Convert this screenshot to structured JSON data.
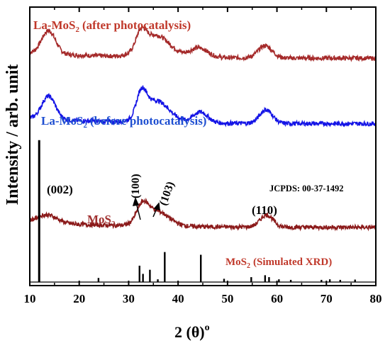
{
  "chart_data": {
    "type": "line",
    "xlabel": "2 (θ)",
    "xlabel_sup": "o",
    "ylabel": "Intensity / arb. unit",
    "xlim": [
      10,
      80
    ],
    "xticks": [
      10,
      20,
      30,
      40,
      50,
      60,
      70,
      80
    ],
    "y_ticks_shown": false,
    "grid": false,
    "series": [
      {
        "name": "La-MoS",
        "name_sub": "2",
        "name_suffix": "(after photocatalysis)",
        "color": "#a52a2a",
        "label_color": "#c0392b",
        "baseline": 0.82,
        "peaks": [
          {
            "x": 13.8,
            "height": 0.085,
            "width": 1.4
          },
          {
            "x": 32.5,
            "height": 0.06,
            "width": 1.0
          },
          {
            "x": 35.5,
            "height": 0.08,
            "width": 2.8
          },
          {
            "x": 44.2,
            "height": 0.035,
            "width": 1.8
          },
          {
            "x": 57.6,
            "height": 0.045,
            "width": 1.4
          }
        ]
      },
      {
        "name": "La-MoS",
        "name_sub": "2",
        "name_suffix": "(before photocatalysis)",
        "color": "#1414e6",
        "label_color": "#1f4fd1",
        "baseline": 0.58,
        "peaks": [
          {
            "x": 13.8,
            "height": 0.085,
            "width": 1.4
          },
          {
            "x": 32.6,
            "height": 0.085,
            "width": 1.0
          },
          {
            "x": 35.6,
            "height": 0.08,
            "width": 2.6
          },
          {
            "x": 44.5,
            "height": 0.04,
            "width": 1.5
          },
          {
            "x": 57.8,
            "height": 0.05,
            "width": 1.3
          }
        ]
      },
      {
        "name": "MoS",
        "name_sub": "2",
        "name_suffix": "",
        "color": "#8b1a1a",
        "label_color": "#a0302f",
        "baseline": 0.2,
        "peaks": [
          {
            "x": 13.5,
            "height": 0.03,
            "width": 2.0
          },
          {
            "x": 32.8,
            "height": 0.06,
            "width": 1.2
          },
          {
            "x": 35.6,
            "height": 0.055,
            "width": 2.5
          },
          {
            "x": 57.9,
            "height": 0.045,
            "width": 1.3
          }
        ]
      },
      {
        "name": "MoS",
        "name_sub": "2",
        "name_suffix": "(Simulated XRD)",
        "color": "#000000",
        "label_color": "#c0392b",
        "baseline": 0.0,
        "sticks": [
          {
            "x": 11.9,
            "height": 0.52
          },
          {
            "x": 23.9,
            "height": 0.015
          },
          {
            "x": 32.2,
            "height": 0.06
          },
          {
            "x": 32.9,
            "height": 0.03
          },
          {
            "x": 34.3,
            "height": 0.045
          },
          {
            "x": 35.9,
            "height": 0.01
          },
          {
            "x": 37.3,
            "height": 0.11
          },
          {
            "x": 44.6,
            "height": 0.1
          },
          {
            "x": 49.3,
            "height": 0.012
          },
          {
            "x": 54.8,
            "height": 0.018
          },
          {
            "x": 57.6,
            "height": 0.025
          },
          {
            "x": 58.4,
            "height": 0.018
          },
          {
            "x": 60.4,
            "height": 0.01
          },
          {
            "x": 62.8,
            "height": 0.008
          },
          {
            "x": 69.0,
            "height": 0.008
          },
          {
            "x": 70.7,
            "height": 0.01
          },
          {
            "x": 72.8,
            "height": 0.008
          },
          {
            "x": 75.8,
            "height": 0.009
          }
        ]
      }
    ],
    "annotations": {
      "jcpds": "JCPDS: 00-37-1492",
      "peak_002": "(002)",
      "peak_100": "(100)",
      "peak_103": "(103)",
      "peak_110": "(110)"
    }
  }
}
